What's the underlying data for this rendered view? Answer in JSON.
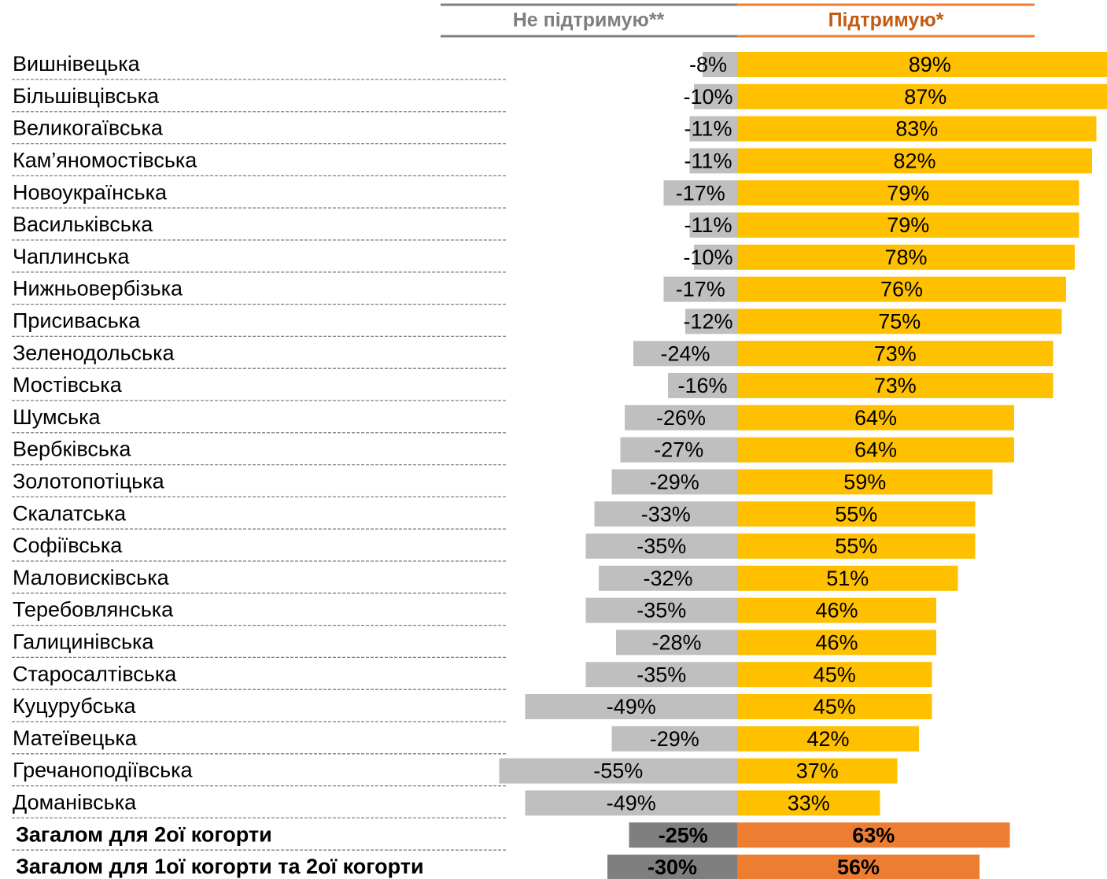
{
  "chart_data": {
    "type": "diverging-bar",
    "categories": [
      "Вишнівецька",
      "Більшівцівська",
      "Великогаївська",
      "Кам’яномостівська",
      "Новоукраїнська",
      "Васильківська",
      "Чаплинська",
      "Нижньовербізька",
      "Присиваська",
      "Зеленодольська",
      "Мостівська",
      "Шумська",
      "Вербківська",
      "Золотопотіцька",
      "Скалатська",
      "Софіївська",
      "Маловисківська",
      "Теребовлянська",
      "Галицинівська",
      "Старосалтівська",
      "Куцурубська",
      "Матеївецька",
      "Гречаноподіївська",
      "Доманівська",
      "Загалом для 2ої когорти",
      "Загалом для 1ої когорти та 2ої когорти"
    ],
    "bold_rows": [
      24,
      25
    ],
    "series": [
      {
        "name": "Не підтримую**",
        "color": "#bfbfbf",
        "colors": [
          "#bfbfbf",
          "#bfbfbf",
          "#bfbfbf",
          "#bfbfbf",
          "#bfbfbf",
          "#bfbfbf",
          "#bfbfbf",
          "#bfbfbf",
          "#bfbfbf",
          "#bfbfbf",
          "#bfbfbf",
          "#bfbfbf",
          "#bfbfbf",
          "#bfbfbf",
          "#bfbfbf",
          "#bfbfbf",
          "#bfbfbf",
          "#bfbfbf",
          "#bfbfbf",
          "#bfbfbf",
          "#bfbfbf",
          "#bfbfbf",
          "#bfbfbf",
          "#bfbfbf",
          "#7f7f7f",
          "#7f7f7f"
        ],
        "values": [
          -8,
          -10,
          -11,
          -11,
          -17,
          -11,
          -10,
          -17,
          -12,
          -24,
          -16,
          -26,
          -27,
          -29,
          -33,
          -35,
          -32,
          -35,
          -28,
          -35,
          -49,
          -29,
          -55,
          -49,
          -25,
          -30
        ],
        "value_labels": [
          "-8%",
          "-10%",
          "-11%",
          "-11%",
          "-17%",
          "-11%",
          "-10%",
          "-17%",
          "-12%",
          "-24%",
          "-16%",
          "-26%",
          "-27%",
          "-29%",
          "-33%",
          "-35%",
          "-32%",
          "-35%",
          "-28%",
          "-35%",
          "-49%",
          "-29%",
          "-55%",
          "-49%",
          "-25%",
          "-30%"
        ]
      },
      {
        "name": "Підтримую*",
        "color": "#ffc000",
        "colors": [
          "#ffc000",
          "#ffc000",
          "#ffc000",
          "#ffc000",
          "#ffc000",
          "#ffc000",
          "#ffc000",
          "#ffc000",
          "#ffc000",
          "#ffc000",
          "#ffc000",
          "#ffc000",
          "#ffc000",
          "#ffc000",
          "#ffc000",
          "#ffc000",
          "#ffc000",
          "#ffc000",
          "#ffc000",
          "#ffc000",
          "#ffc000",
          "#ffc000",
          "#ffc000",
          "#ffc000",
          "#ed7d31",
          "#ed7d31"
        ],
        "values": [
          89,
          87,
          83,
          82,
          79,
          79,
          78,
          76,
          75,
          73,
          73,
          64,
          64,
          59,
          55,
          55,
          51,
          46,
          46,
          45,
          45,
          42,
          37,
          33,
          63,
          56
        ],
        "value_labels": [
          "89%",
          "87%",
          "83%",
          "82%",
          "79%",
          "79%",
          "78%",
          "76%",
          "75%",
          "73%",
          "73%",
          "64%",
          "64%",
          "59%",
          "55%",
          "55%",
          "51%",
          "46%",
          "46%",
          "45%",
          "45%",
          "42%",
          "37%",
          "33%",
          "63%",
          "56%"
        ]
      }
    ]
  }
}
